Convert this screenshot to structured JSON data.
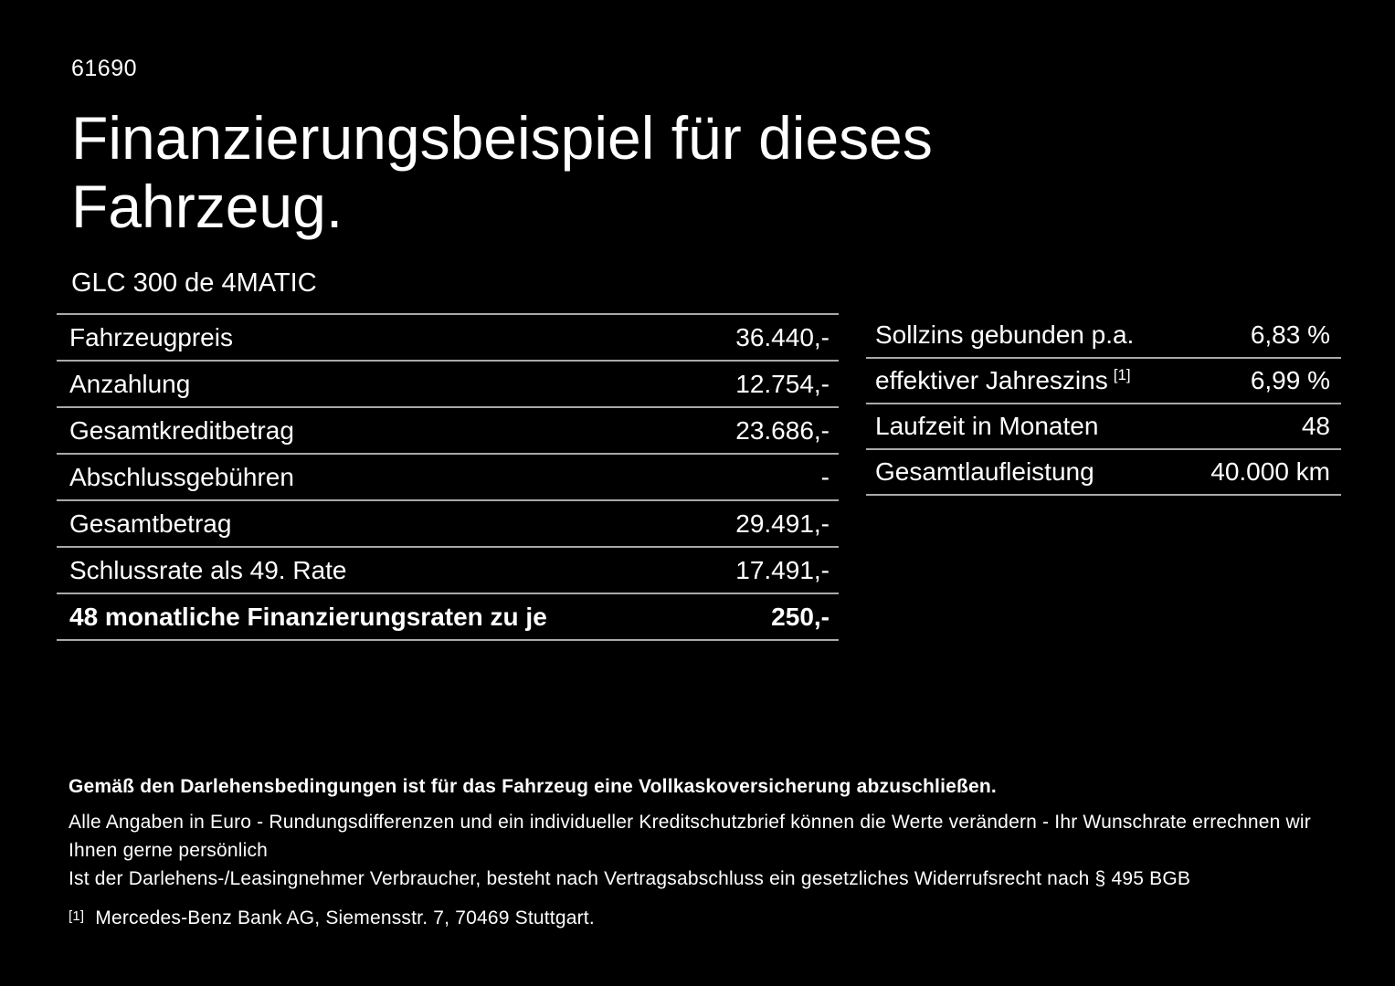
{
  "page": {
    "id_number": "61690",
    "title": "Finanzierungsbeispiel für dieses Fahrzeug.",
    "vehicle_model": "GLC 300 de 4MATIC"
  },
  "finance_table": {
    "rows": [
      {
        "label": "Fahrzeugpreis",
        "value": "36.440,-"
      },
      {
        "label": "Anzahlung",
        "value": "12.754,-"
      },
      {
        "label": "Gesamtkreditbetrag",
        "value": "23.686,-"
      },
      {
        "label": "Abschlussgebühren",
        "value": "-"
      },
      {
        "label": "Gesamtbetrag",
        "value": "29.491,-"
      },
      {
        "label": "Schlussrate als 49. Rate",
        "value": "17.491,-"
      },
      {
        "label": "48 monatliche Finanzierungsraten zu je",
        "value": "250,-"
      }
    ]
  },
  "conditions_table": {
    "rows": [
      {
        "label": "Sollzins gebunden p.a.",
        "value": "6,83 %"
      },
      {
        "label": "effektiver Jahreszins",
        "footnote_marker": "[1]",
        "value": "6,99 %"
      },
      {
        "label": "Laufzeit in Monaten",
        "value": "48"
      },
      {
        "label": "Gesamtlaufleistung",
        "value": "40.000 km"
      }
    ]
  },
  "footer": {
    "insurance_note": "Gemäß den Darlehensbedingungen ist für das Fahrzeug eine Vollkaskoversicherung abzuschließen.",
    "disclaimer_line1": "Alle Angaben in Euro - Rundungsdifferenzen und ein individueller Kreditschutzbrief können die Werte verändern - Ihr Wunschrate errechnen wir Ihnen gerne persönlich",
    "disclaimer_line2": "Ist der Darlehens-/Leasingnehmer Verbraucher, besteht nach Vertragsabschluss ein gesetzliches Widerrufsrecht nach § 495 BGB",
    "footnote_marker": "[1]",
    "footnote_text": "Mercedes-Benz Bank AG, Siemensstr. 7, 70469 Stuttgart."
  },
  "colors": {
    "background": "#000000",
    "text": "#ffffff",
    "rule": "#a9a9a9"
  }
}
